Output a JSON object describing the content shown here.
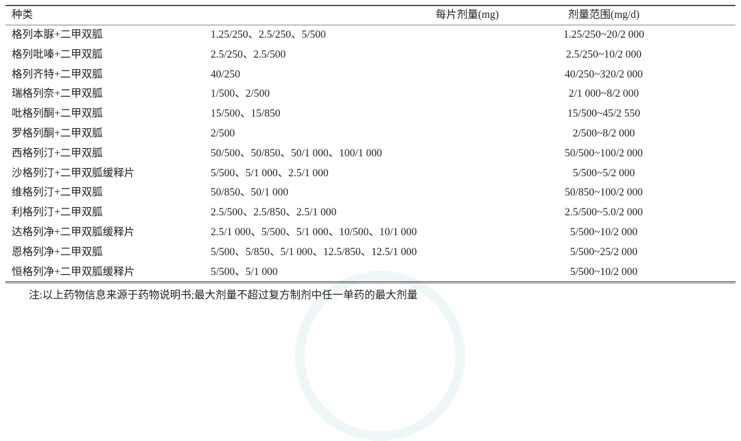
{
  "table": {
    "headers": [
      "种类",
      "每片剂量(mg)",
      "剂量范围(mg/d)"
    ],
    "rows": [
      [
        "格列本脲+二甲双胍",
        "1.25/250、2.5/250、5/500",
        "1.25/250~20/2 000"
      ],
      [
        "格列吡嗪+二甲双胍",
        "2.5/250、2.5/500",
        "2.5/250~10/2 000"
      ],
      [
        "格列齐特+二甲双胍",
        "40/250",
        "40/250~320/2 000"
      ],
      [
        "瑞格列奈+二甲双胍",
        "1/500、2/500",
        "2/1 000~8/2 000"
      ],
      [
        "吡格列酮+二甲双胍",
        "15/500、15/850",
        "15/500~45/2 550"
      ],
      [
        "罗格列酮+二甲双胍",
        "2/500",
        "2/500~8/2 000"
      ],
      [
        "西格列汀+二甲双胍",
        "50/500、50/850、50/1 000、100/1 000",
        "50/500~100/2 000"
      ],
      [
        "沙格列汀+二甲双胍缓释片",
        "5/500、5/1 000、2.5/1 000",
        "5/500~5/2 000"
      ],
      [
        "维格列汀+二甲双胍",
        "50/850、50/1 000",
        "50/850~100/2 000"
      ],
      [
        "利格列汀+二甲双胍",
        "2.5/500、2.5/850、2.5/1 000",
        "2.5/500~5.0/2 000"
      ],
      [
        "达格列净+二甲双胍缓释片",
        "2.5/1 000、5/500、5/1 000、10/500、10/1 000",
        "5/500~10/2 000"
      ],
      [
        "恩格列净+二甲双胍",
        "5/500、5/850、5/1 000、12.5/850、12.5/1 000",
        "5/500~25/2 000"
      ],
      [
        "恒格列净+二甲双胍缓释片",
        "5/500、5/1 000",
        "5/500~10/2 000"
      ]
    ],
    "note": "注:以上药物信息来源于药物说明书;最大剂量不超过复方制剂中任一单药的最大剂量"
  }
}
